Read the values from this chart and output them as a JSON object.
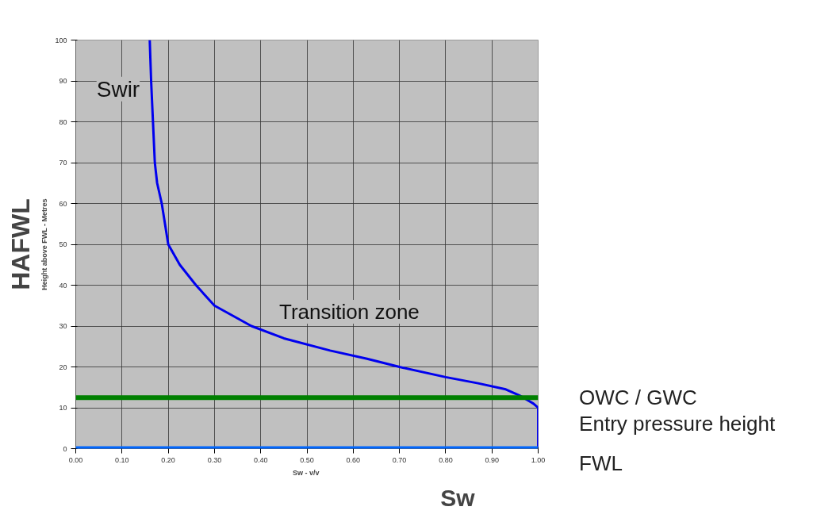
{
  "chart_data": {
    "type": "line",
    "xlabel": "Sw  - v/v",
    "ylabel": "Height above FWL - Metres",
    "x": [
      0.16,
      0.163,
      0.167,
      0.171,
      0.176,
      0.186,
      0.2,
      0.225,
      0.26,
      0.3,
      0.38,
      0.45,
      0.55,
      0.63,
      0.7,
      0.8,
      0.87,
      0.93,
      0.96,
      0.99,
      1.0,
      1.0
    ],
    "series": [
      {
        "color": "#0000ee",
        "values": [
          100,
          90,
          80,
          70,
          65,
          60,
          50,
          45,
          40,
          35,
          30,
          27,
          24,
          22,
          20,
          17.5,
          16,
          14.5,
          13,
          11,
          10,
          0
        ]
      }
    ],
    "xlim": [
      0,
      1
    ],
    "ylim": [
      0,
      100
    ],
    "xticks": [
      {
        "value": 0,
        "label": "0.00"
      },
      {
        "value": 0.1,
        "label": "0.10"
      },
      {
        "value": 0.2,
        "label": "0.20"
      },
      {
        "value": 0.3,
        "label": "0.30"
      },
      {
        "value": 0.4,
        "label": "0.40"
      },
      {
        "value": 0.5,
        "label": "0.50"
      },
      {
        "value": 0.6,
        "label": "0.60"
      },
      {
        "value": 0.7,
        "label": "0.70"
      },
      {
        "value": 0.8,
        "label": "0.80"
      },
      {
        "value": 0.9,
        "label": "0.90"
      },
      {
        "value": 1,
        "label": "1.00"
      }
    ],
    "yticks": [
      0,
      10,
      20,
      30,
      40,
      50,
      60,
      70,
      80,
      90,
      100
    ],
    "grid": true,
    "marker": "none",
    "line_style": "solid",
    "ref_lines": [
      {
        "axis": "y",
        "value": 12.5,
        "label": "OWC / GWC",
        "color": "#008000"
      },
      {
        "axis": "y",
        "value": 0,
        "label": "FWL",
        "color": "#0066ff"
      }
    ],
    "annotations": [
      "Swir",
      "Transition zone",
      "HAFWL",
      "Sw",
      "Entry pressure height"
    ]
  }
}
